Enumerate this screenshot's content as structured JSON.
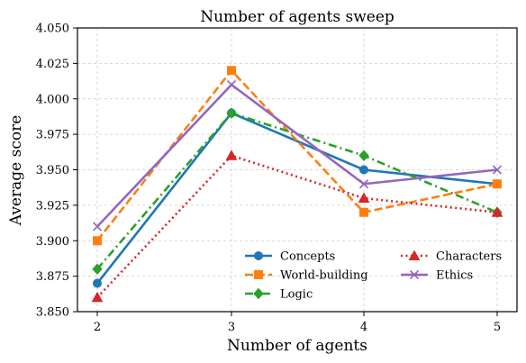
{
  "chart_data": {
    "type": "line",
    "title": "Number of agents sweep",
    "xlabel": "Number of agents",
    "ylabel": "Average score",
    "x": [
      2,
      3,
      4,
      5
    ],
    "xticks": [
      "2",
      "3",
      "4",
      "5"
    ],
    "ylim": [
      3.85,
      4.05
    ],
    "yticks": [
      "3.850",
      "3.875",
      "3.900",
      "3.925",
      "3.950",
      "3.975",
      "4.000",
      "4.025",
      "4.050"
    ],
    "grid": true,
    "legend_position": "bottom-right",
    "series": [
      {
        "name": "Concepts",
        "values": [
          3.87,
          3.99,
          3.95,
          3.94
        ],
        "color": "#1f77b4",
        "marker": "circle",
        "linestyle": "solid"
      },
      {
        "name": "World-building",
        "values": [
          3.9,
          4.02,
          3.92,
          3.94
        ],
        "color": "#ff7f0e",
        "marker": "square",
        "linestyle": "dashed"
      },
      {
        "name": "Logic",
        "values": [
          3.88,
          3.99,
          3.96,
          3.92
        ],
        "color": "#2ca02c",
        "marker": "diamond",
        "linestyle": "dashdot"
      },
      {
        "name": "Characters",
        "values": [
          3.86,
          3.96,
          3.93,
          3.92
        ],
        "color": "#d62728",
        "marker": "triangle",
        "linestyle": "dotted"
      },
      {
        "name": "Ethics",
        "values": [
          3.91,
          4.01,
          3.94,
          3.95
        ],
        "color": "#9467bd",
        "marker": "x",
        "linestyle": "solid"
      }
    ]
  }
}
